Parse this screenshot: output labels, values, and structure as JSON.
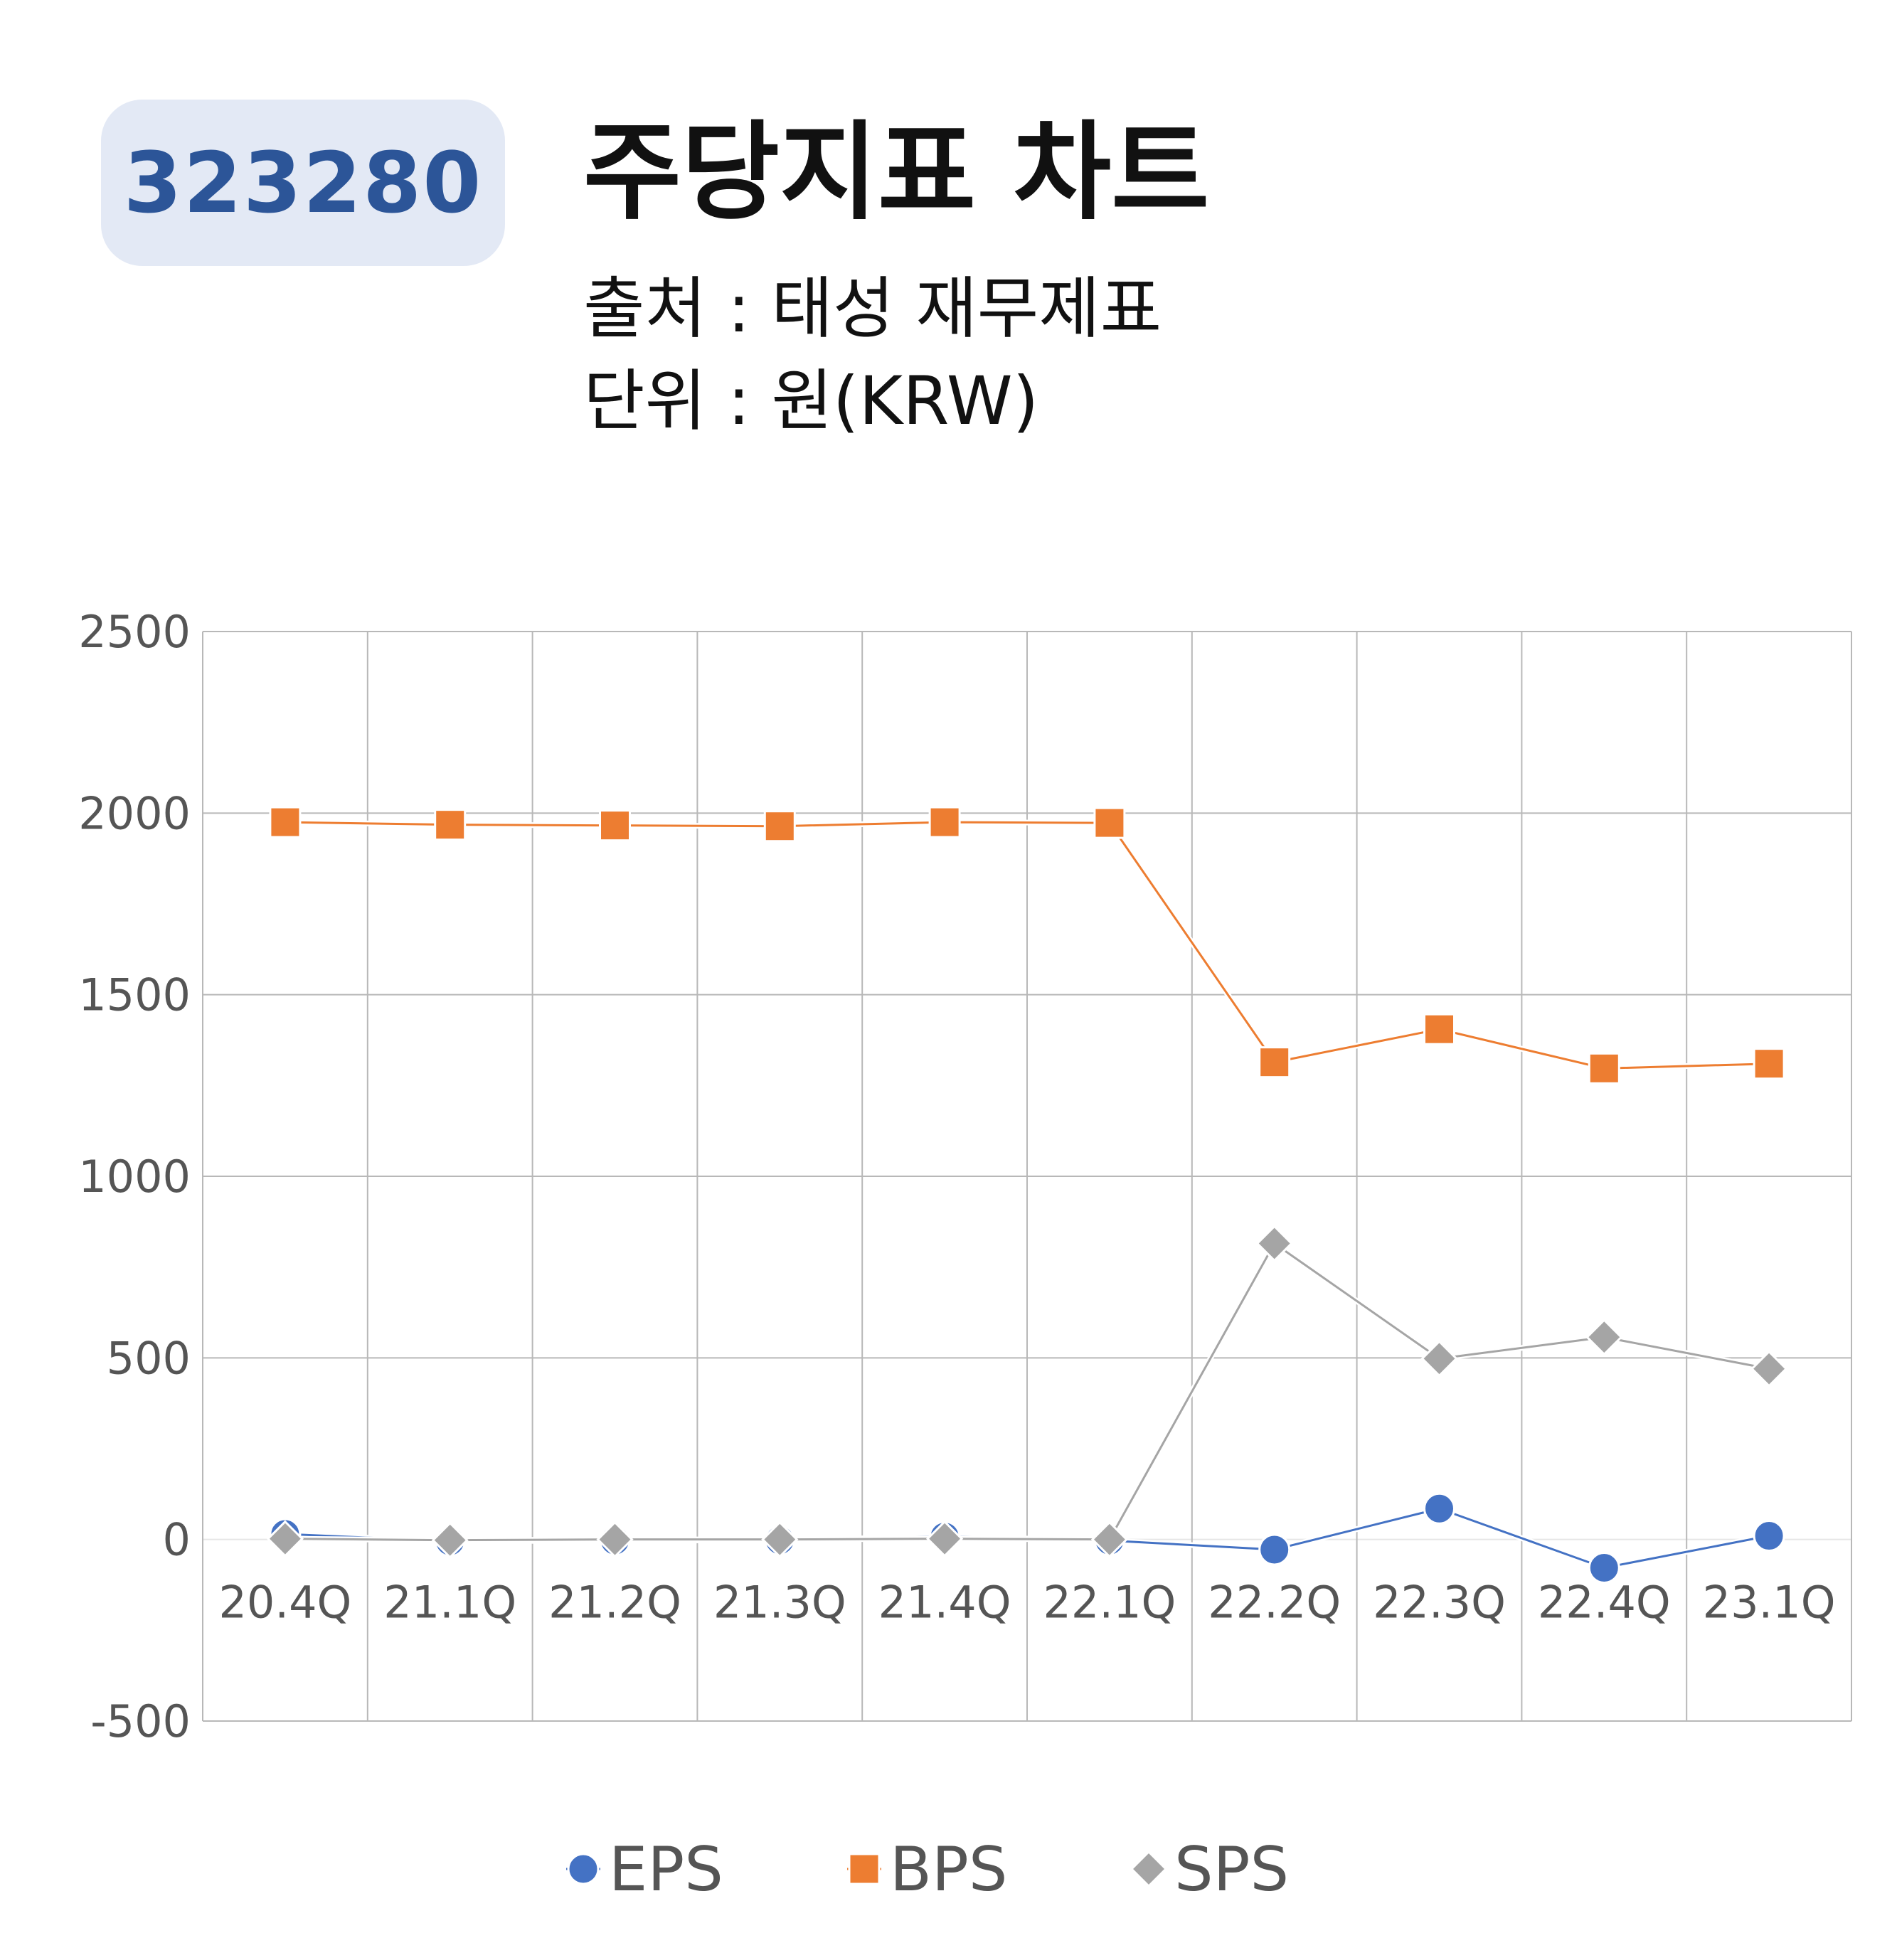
{
  "header": {
    "ticker": "323280",
    "title": "주당지표 차트",
    "source": "출처 : 태성 재무제표",
    "unit": "단위 : 원(KRW)"
  },
  "chart_data": {
    "type": "line",
    "categories": [
      "20.4Q",
      "21.1Q",
      "21.2Q",
      "21.3Q",
      "21.4Q",
      "22.1Q",
      "22.2Q",
      "22.3Q",
      "22.4Q",
      "23.1Q"
    ],
    "y_ticks": [
      "2500",
      "2000",
      "1500",
      "1000",
      "500",
      "0",
      "-500"
    ],
    "ylim": [
      -500,
      2500
    ],
    "grid": true,
    "legend_position": "bottom",
    "series": [
      {
        "name": "EPS",
        "color": "#4472c4",
        "marker": "circle",
        "values": [
          15,
          -5,
          -3,
          -2,
          8,
          -3,
          -28,
          85,
          -78,
          10
        ]
      },
      {
        "name": "BPS",
        "color": "#ed7d31",
        "marker": "square",
        "values": [
          1975,
          1968,
          1966,
          1964,
          1975,
          1973,
          1314,
          1405,
          1297,
          1310
        ]
      },
      {
        "name": "SPS",
        "color": "#a5a5a5",
        "marker": "diamond",
        "values": [
          2,
          -2,
          0,
          0,
          2,
          0,
          815,
          498,
          557,
          470
        ]
      }
    ]
  }
}
